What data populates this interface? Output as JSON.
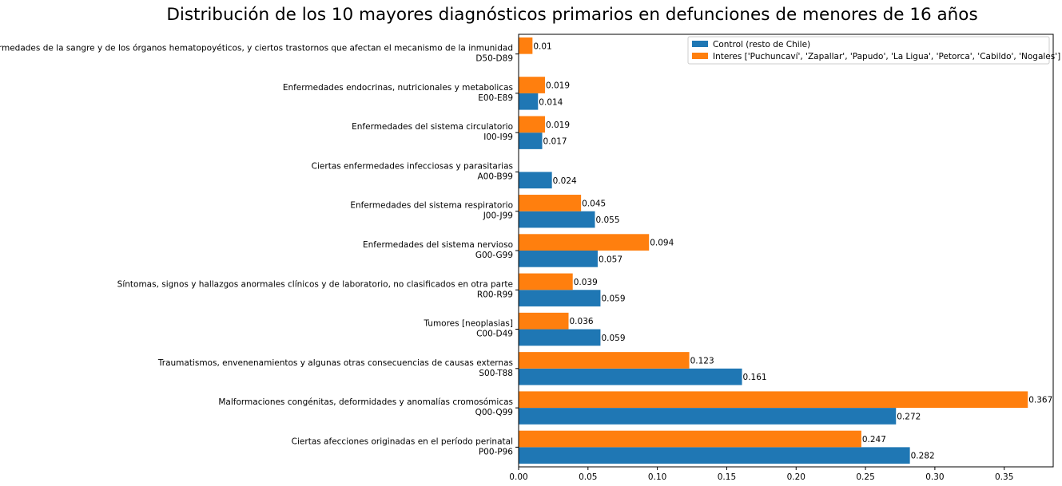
{
  "chart_data": {
    "type": "bar",
    "orientation": "horizontal",
    "title": "Distribución de los 10 mayores diagnósticos primarios en defunciones de menores de 16 años",
    "xlabel": "",
    "ylabel": "",
    "xlim": [
      0,
      0.3853
    ],
    "xticks": [
      0.0,
      0.05,
      0.1,
      0.15,
      0.2,
      0.25,
      0.3,
      0.35
    ],
    "xtick_labels": [
      "0.00",
      "0.05",
      "0.10",
      "0.15",
      "0.20",
      "0.25",
      "0.30",
      "0.35"
    ],
    "grid": false,
    "legend_position": "top-right",
    "categories": [
      {
        "name": "Ciertas afecciones originadas en el período perinatal",
        "code": "P00-P96"
      },
      {
        "name": "Malformaciones congénitas, deformidades y anomalías cromosómicas",
        "code": "Q00-Q99"
      },
      {
        "name": "Traumatismos, envenenamientos y algunas otras consecuencias de causas externas",
        "code": "S00-T88"
      },
      {
        "name": "Tumores [neoplasias]",
        "code": "C00-D49"
      },
      {
        "name": "Síntomas, signos y hallazgos anormales clínicos y de laboratorio, no clasificados en otra parte",
        "code": "R00-R99"
      },
      {
        "name": "Enfermedades del sistema nervioso",
        "code": "G00-G99"
      },
      {
        "name": "Enfermedades del sistema respiratorio",
        "code": "J00-J99"
      },
      {
        "name": "Ciertas enfermedades infecciosas y parasitarias",
        "code": "A00-B99"
      },
      {
        "name": "Enfermedades del sistema circulatorio",
        "code": "I00-I99"
      },
      {
        "name": "Enfermedades endocrinas, nutricionales y metabolicas",
        "code": "E00-E89"
      },
      {
        "name": "Enfermedades de la sangre y de los órganos hematopoyéticos, y ciertos trastornos que afectan el mecanismo de la inmunidad",
        "code": "D50-D89"
      }
    ],
    "series": [
      {
        "name": "Control (resto de Chile)",
        "color": "#1f77b4",
        "values": [
          0.282,
          0.272,
          0.161,
          0.059,
          0.059,
          0.057,
          0.055,
          0.024,
          0.017,
          0.014,
          null
        ],
        "labels": [
          "0.282",
          "0.272",
          "0.161",
          "0.059",
          "0.059",
          "0.057",
          "0.055",
          "0.024",
          "0.017",
          "0.014",
          ""
        ]
      },
      {
        "name": "Interes ['Puchuncaví', 'Zapallar', 'Papudo', 'La Ligua', 'Petorca', 'Cabildo', 'Nogales']",
        "color": "#ff7f0e",
        "values": [
          0.247,
          0.367,
          0.123,
          0.036,
          0.039,
          0.094,
          0.045,
          null,
          0.019,
          0.019,
          0.01
        ],
        "labels": [
          "0.247",
          "0.367",
          "0.123",
          "0.036",
          "0.039",
          "0.094",
          "0.045",
          "",
          "0.019",
          "0.019",
          "0.01"
        ]
      }
    ]
  }
}
